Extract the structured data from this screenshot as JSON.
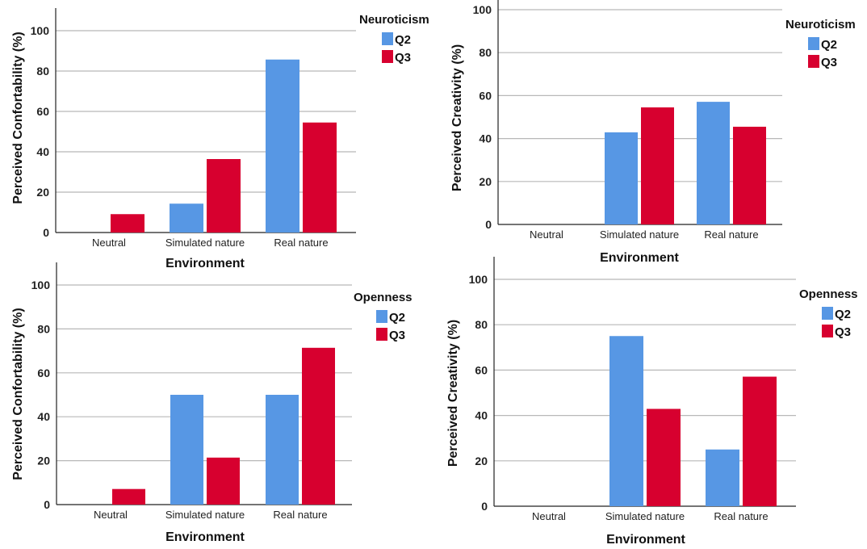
{
  "chart_data": [
    {
      "type": "bar",
      "title": "",
      "xlabel": "Environment",
      "ylabel": "Perceived Confortability (%)",
      "categories": [
        "Neutral",
        "Simulated nature",
        "Real nature"
      ],
      "ylim": [
        0,
        100
      ],
      "yticks": [
        "0",
        "20",
        "40",
        "60",
        "80",
        "100"
      ],
      "grid": true,
      "legend": {
        "title": "Neuroticism",
        "position": "right"
      },
      "series": [
        {
          "name": "Q2",
          "color": "#5797e4",
          "values": [
            0,
            14.3,
            85.7
          ]
        },
        {
          "name": "Q3",
          "color": "#d7002f",
          "values": [
            9.1,
            36.4,
            54.5
          ]
        }
      ]
    },
    {
      "type": "bar",
      "title": "",
      "xlabel": "Environment",
      "ylabel": "Perceived Creativity (%)",
      "categories": [
        "Neutral",
        "Simulated nature",
        "Real nature"
      ],
      "ylim": [
        0,
        100
      ],
      "yticks": [
        "0",
        "20",
        "40",
        "60",
        "80",
        "100"
      ],
      "grid": true,
      "legend": {
        "title": "Neuroticism",
        "position": "right"
      },
      "series": [
        {
          "name": "Q2",
          "color": "#5797e4",
          "values": [
            0,
            42.9,
            57.1
          ]
        },
        {
          "name": "Q3",
          "color": "#d7002f",
          "values": [
            0,
            54.5,
            45.5
          ]
        }
      ]
    },
    {
      "type": "bar",
      "title": "",
      "xlabel": "Environment",
      "ylabel": "Perceived Confortability (%)",
      "categories": [
        "Neutral",
        "Simulated nature",
        "Real nature"
      ],
      "ylim": [
        0,
        100
      ],
      "yticks": [
        "0",
        "20",
        "40",
        "60",
        "80",
        "100"
      ],
      "grid": true,
      "legend": {
        "title": "Openness",
        "position": "right"
      },
      "series": [
        {
          "name": "Q2",
          "color": "#5797e4",
          "values": [
            0,
            50,
            50
          ]
        },
        {
          "name": "Q3",
          "color": "#d7002f",
          "values": [
            7.1,
            21.4,
            71.4
          ]
        }
      ]
    },
    {
      "type": "bar",
      "title": "",
      "xlabel": "Environment",
      "ylabel": "Perceived Creativity (%)",
      "categories": [
        "Neutral",
        "Simulated nature",
        "Real nature"
      ],
      "ylim": [
        0,
        100
      ],
      "yticks": [
        "0",
        "20",
        "40",
        "60",
        "80",
        "100"
      ],
      "grid": true,
      "legend": {
        "title": "Openness",
        "position": "right"
      },
      "series": [
        {
          "name": "Q2",
          "color": "#5797e4",
          "values": [
            0,
            75,
            25
          ]
        },
        {
          "name": "Q3",
          "color": "#d7002f",
          "values": [
            0,
            42.9,
            57.1
          ]
        }
      ]
    }
  ]
}
